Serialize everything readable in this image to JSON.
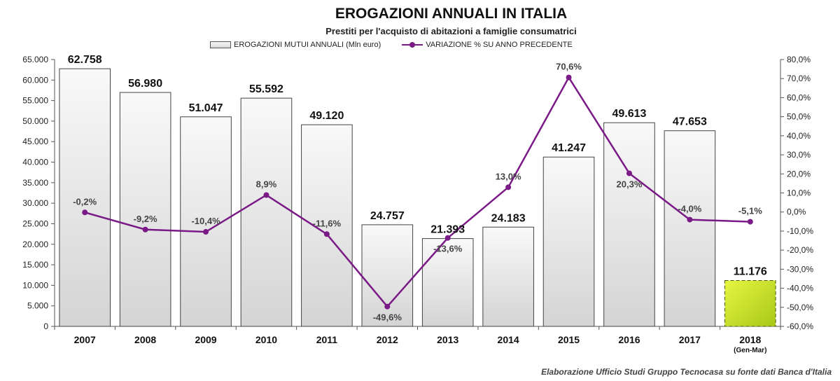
{
  "chart_data": {
    "type": "bar",
    "title": "EROGAZIONI ANNUALI IN ITALIA",
    "subtitle": "Prestiti per l'acquisto di abitazioni a famiglie consumatrici",
    "categories": [
      "2007",
      "2008",
      "2009",
      "2010",
      "2011",
      "2012",
      "2013",
      "2014",
      "2015",
      "2016",
      "2017",
      "2018"
    ],
    "category_sublabels": [
      "",
      "",
      "",
      "",
      "",
      "",
      "",
      "",
      "",
      "",
      "",
      "(Gen-Mar)"
    ],
    "series": [
      {
        "name": "EROGAZIONI MUTUI ANNUALI (Mln euro)",
        "type": "bar",
        "axis": "left",
        "values": [
          62758,
          56980,
          51047,
          55592,
          49120,
          24757,
          21393,
          24183,
          41247,
          49613,
          47653,
          11176
        ],
        "value_labels": [
          "62.758",
          "56.980",
          "51.047",
          "55.592",
          "49.120",
          "24.757",
          "21.393",
          "24.183",
          "41.247",
          "49.613",
          "47.653",
          "11.176"
        ],
        "highlight_index": 11
      },
      {
        "name": "VARIAZIONE % SU ANNO PRECEDENTE",
        "type": "line",
        "axis": "right",
        "values": [
          -0.2,
          -9.2,
          -10.4,
          8.9,
          -11.6,
          -49.6,
          -13.6,
          13.0,
          70.6,
          20.3,
          -4.0,
          -5.1
        ],
        "value_labels": [
          "-0,2%",
          "-9,2%",
          "-10,4%",
          "8,9%",
          "-11,6%",
          "-49,6%",
          "-13,6%",
          "13,0%",
          "70,6%",
          "20,3%",
          "-4,0%",
          "-5,1%"
        ]
      }
    ],
    "left_axis": {
      "ylim": [
        0,
        65000
      ],
      "ticks": [
        0,
        5000,
        10000,
        15000,
        20000,
        25000,
        30000,
        35000,
        40000,
        45000,
        50000,
        55000,
        60000,
        65000
      ],
      "tick_labels": [
        "0",
        "5.000",
        "10.000",
        "15.000",
        "20.000",
        "25.000",
        "30.000",
        "35.000",
        "40.000",
        "45.000",
        "50.000",
        "55.000",
        "60.000",
        "65.000"
      ]
    },
    "right_axis": {
      "ylim": [
        -60,
        80
      ],
      "ticks": [
        -60,
        -50,
        -40,
        -30,
        -20,
        -10,
        0,
        10,
        20,
        30,
        40,
        50,
        60,
        70,
        80
      ],
      "tick_labels": [
        "-60,0%",
        "-50,0%",
        "-40,0%",
        "-30,0%",
        "-20,0%",
        "-10,0%",
        "0,0%",
        "10,0%",
        "20,0%",
        "30,0%",
        "40,0%",
        "50,0%",
        "60,0%",
        "70,0%",
        "80,0%"
      ]
    },
    "legend_position": "top-center",
    "grid": false
  },
  "footer": {
    "source": "Elaborazione  Ufficio Studi Gruppo Tecnocasa su fonte dati Banca d'Italia"
  },
  "colors": {
    "bar_fill": "#e6e6e6",
    "bar_highlight": "#b8d420",
    "line": "#7a1a86",
    "axis": "#555555"
  }
}
